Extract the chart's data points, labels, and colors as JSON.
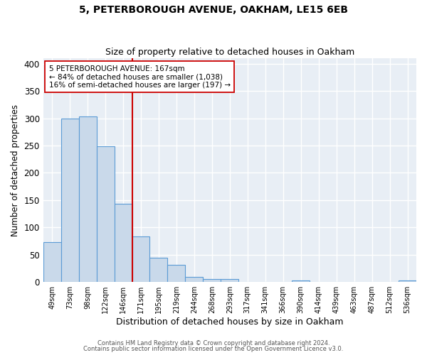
{
  "title": "5, PETERBOROUGH AVENUE, OAKHAM, LE15 6EB",
  "subtitle": "Size of property relative to detached houses in Oakham",
  "xlabel": "Distribution of detached houses by size in Oakham",
  "ylabel": "Number of detached properties",
  "bar_labels": [
    "49sqm",
    "73sqm",
    "98sqm",
    "122sqm",
    "146sqm",
    "171sqm",
    "195sqm",
    "219sqm",
    "244sqm",
    "268sqm",
    "293sqm",
    "317sqm",
    "341sqm",
    "366sqm",
    "390sqm",
    "414sqm",
    "439sqm",
    "463sqm",
    "487sqm",
    "512sqm",
    "536sqm"
  ],
  "bar_heights": [
    73,
    299,
    304,
    249,
    144,
    83,
    45,
    32,
    9,
    6,
    6,
    0,
    0,
    0,
    3,
    0,
    0,
    0,
    0,
    0,
    3
  ],
  "bar_color": "#c9d9ea",
  "bar_edge_color": "#5b9bd5",
  "vline_color": "#cc0000",
  "vline_x_index": 4.5,
  "annotation_line1": "5 PETERBOROUGH AVENUE: 167sqm",
  "annotation_line2": "← 84% of detached houses are smaller (1,038)",
  "annotation_line3": "16% of semi-detached houses are larger (197) →",
  "annotation_box_color": "#ffffff",
  "annotation_box_edge": "#cc0000",
  "ylim": [
    0,
    410
  ],
  "yticks": [
    0,
    50,
    100,
    150,
    200,
    250,
    300,
    350,
    400
  ],
  "footer1": "Contains HM Land Registry data © Crown copyright and database right 2024.",
  "footer2": "Contains public sector information licensed under the Open Government Licence v3.0.",
  "bg_color": "#ffffff",
  "plot_bg_color": "#e8eef5",
  "title_fontsize": 10,
  "subtitle_fontsize": 9,
  "xlabel_fontsize": 9,
  "ylabel_fontsize": 8.5
}
